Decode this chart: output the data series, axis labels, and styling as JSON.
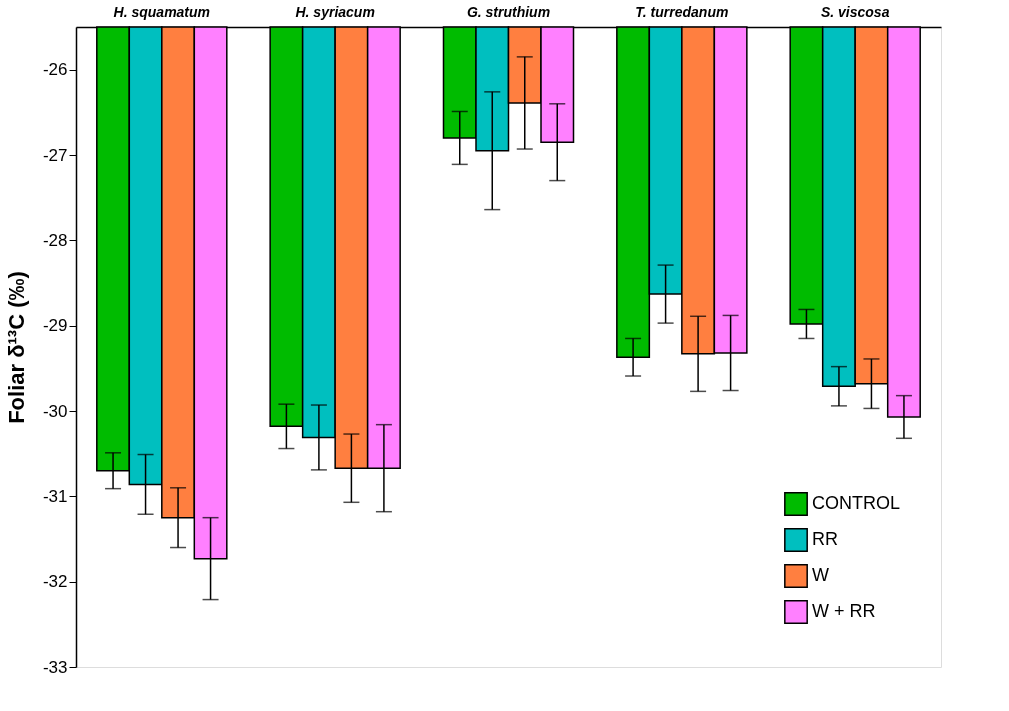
{
  "chart_data": {
    "type": "bar",
    "ylabel": "Foliar δ¹³C (‰)",
    "categories": [
      "H. squamatum",
      "H. syriacum",
      "G. struthium",
      "T. turredanum",
      "S. viscosa"
    ],
    "ylim": [
      -33,
      -25.5
    ],
    "yticks": [
      -33,
      -32,
      -31,
      -30,
      -29,
      -28,
      -27,
      -26
    ],
    "grid": false,
    "legend": "bottom right",
    "series": [
      {
        "name": "CONTROL",
        "color": "#00bb00",
        "values": [
          -30.7,
          -30.18,
          -26.8,
          -29.37,
          -28.98
        ],
        "errors": [
          0.21,
          0.26,
          0.31,
          0.22,
          0.17
        ]
      },
      {
        "name": "RR",
        "color": "#00bfbf",
        "values": [
          -30.86,
          -30.31,
          -26.95,
          -28.63,
          -29.71
        ],
        "errors": [
          0.35,
          0.38,
          0.69,
          0.34,
          0.23
        ]
      },
      {
        "name": "W",
        "color": "#ff7f40",
        "values": [
          -31.25,
          -30.67,
          -26.39,
          -29.33,
          -29.68
        ],
        "errors": [
          0.35,
          0.4,
          0.54,
          0.44,
          0.29
        ]
      },
      {
        "name": "W + RR",
        "color": "#ff80ff",
        "values": [
          -31.73,
          -30.67,
          -26.85,
          -29.32,
          -30.07
        ],
        "errors": [
          0.48,
          0.51,
          0.45,
          0.44,
          0.25
        ]
      }
    ]
  }
}
